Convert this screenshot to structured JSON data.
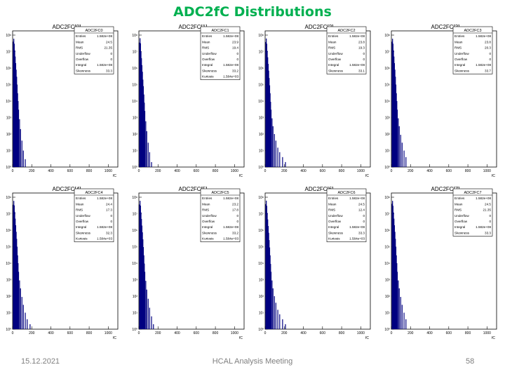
{
  "slide": {
    "title": "ADC2fC Distributions",
    "footer_date": "15.12.2021",
    "footer_center": "HCAL Analysis Meeting",
    "page_number": "58"
  },
  "colors": {
    "title": "#00b050",
    "bars": "#000080",
    "footer": "#7f7f7f"
  },
  "chart_data": [
    {
      "type": "bar",
      "title": "ADC2FC[0]",
      "stats_title": "ADC2FC0",
      "log_y": true,
      "xlim": [
        0,
        1100
      ],
      "x_ticks": [
        "0",
        "200",
        "400",
        "600",
        "800",
        "1000"
      ],
      "x_unit": "fC",
      "y_ticks": [
        "10⁰",
        "10¹",
        "10²",
        "10³",
        "10⁴",
        "10⁵",
        "10⁶",
        "10⁷",
        "10⁸"
      ],
      "stats": [
        [
          "Entries",
          "1.582e+08"
        ],
        [
          "Mean",
          "24.5"
        ],
        [
          "RMS",
          "21.35"
        ],
        [
          "Underflow",
          "0"
        ],
        [
          "Overflow",
          "0"
        ],
        [
          "Integral",
          "1.582e+08"
        ],
        [
          "Skewness",
          "33.3"
        ]
      ],
      "bins_x": [
        5,
        10,
        15,
        20,
        25,
        30,
        35,
        40,
        45,
        50,
        55,
        60,
        70,
        80,
        95,
        110,
        130
      ],
      "bins_y": [
        40000000.0,
        60000000.0,
        30000000.0,
        12000000.0,
        5000000.0,
        2000000.0,
        800000.0,
        300000.0,
        100000.0,
        30000.0,
        10000.0,
        3000,
        800,
        200,
        40,
        10,
        3
      ]
    },
    {
      "type": "bar",
      "title": "ADC2FC[1]",
      "stats_title": "ADC2FC1",
      "log_y": true,
      "xlim": [
        0,
        1100
      ],
      "x_ticks": [
        "0",
        "200",
        "400",
        "600",
        "800",
        "1000"
      ],
      "x_unit": "fC",
      "y_ticks": [
        "10⁰",
        "10¹",
        "10²",
        "10³",
        "10⁴",
        "10⁵",
        "10⁶",
        "10⁷",
        "10⁸"
      ],
      "stats": [
        [
          "Entries",
          "1.582e+08"
        ],
        [
          "Mean",
          "23.9"
        ],
        [
          "RMS",
          "19.4"
        ],
        [
          "Underflow",
          "0"
        ],
        [
          "Overflow",
          "0"
        ],
        [
          "Integral",
          "1.582e+08"
        ],
        [
          "Skewness",
          "33.2"
        ],
        [
          "Kurtosis",
          "1.584e+03"
        ]
      ],
      "bins_x": [
        5,
        10,
        15,
        20,
        25,
        30,
        35,
        40,
        45,
        50,
        55,
        60,
        70,
        80,
        95,
        110,
        130
      ],
      "bins_y": [
        35000000.0,
        65000000.0,
        32000000.0,
        10000000.0,
        4000000.0,
        1500000.0,
        600000.0,
        200000.0,
        80000.0,
        25000.0,
        8000,
        2500,
        600,
        150,
        30,
        8,
        2
      ]
    },
    {
      "type": "bar",
      "title": "ADC2FC[2]",
      "stats_title": "ADC2FC2",
      "log_y": true,
      "xlim": [
        0,
        1100
      ],
      "x_ticks": [
        "0",
        "200",
        "400",
        "600",
        "800",
        "1000"
      ],
      "x_unit": "fC",
      "y_ticks": [
        "10⁰",
        "10¹",
        "10²",
        "10³",
        "10⁴",
        "10⁵",
        "10⁶",
        "10⁷",
        "10⁸"
      ],
      "stats": [
        [
          "Entries",
          "1.582e+08"
        ],
        [
          "Mean",
          "23.8"
        ],
        [
          "RMS",
          "19.3"
        ],
        [
          "Underflow",
          "0"
        ],
        [
          "Overflow",
          "0"
        ],
        [
          "Integral",
          "1.582e+08"
        ],
        [
          "Skewness",
          "33.1"
        ]
      ],
      "bins_x": [
        5,
        10,
        15,
        20,
        25,
        30,
        35,
        40,
        45,
        50,
        55,
        60,
        70,
        80,
        95,
        110,
        130,
        150,
        180,
        210,
        250
      ],
      "bins_y": [
        38000000.0,
        62000000.0,
        30000000.0,
        11000000.0,
        4500000.0,
        1800000.0,
        700000.0,
        250000.0,
        90000.0,
        30000.0,
        9000,
        3000,
        900,
        300,
        100,
        40,
        15,
        8,
        4,
        2,
        1
      ]
    },
    {
      "type": "bar",
      "title": "ADC2FC[3]",
      "stats_title": "ADC2FC3",
      "log_y": true,
      "xlim": [
        0,
        1100
      ],
      "x_ticks": [
        "0",
        "200",
        "400",
        "600",
        "800",
        "1000"
      ],
      "x_unit": "fC",
      "y_ticks": [
        "10⁰",
        "10¹",
        "10²",
        "10³",
        "10⁴",
        "10⁵",
        "10⁶",
        "10⁷",
        "10⁸"
      ],
      "stats": [
        [
          "Entries",
          "1.582e+08"
        ],
        [
          "Mean",
          "23.8"
        ],
        [
          "RMS",
          "20.3"
        ],
        [
          "Underflow",
          "0"
        ],
        [
          "Overflow",
          "0"
        ],
        [
          "Integral",
          "1.582e+08"
        ],
        [
          "Skewness",
          "33.7"
        ]
      ],
      "bins_x": [
        5,
        10,
        15,
        20,
        25,
        30,
        35,
        40,
        45,
        50,
        55,
        60,
        70,
        80,
        95,
        110,
        130,
        150,
        180
      ],
      "bins_y": [
        40000000.0,
        60000000.0,
        30000000.0,
        12000000.0,
        5000000.0,
        2000000.0,
        800000.0,
        300000.0,
        100000.0,
        30000.0,
        10000.0,
        3000,
        900,
        300,
        90,
        30,
        10,
        4,
        1
      ]
    },
    {
      "type": "bar",
      "title": "ADC2FC[4]",
      "stats_title": "ADC2FC4",
      "log_y": true,
      "xlim": [
        0,
        1100
      ],
      "x_ticks": [
        "0",
        "200",
        "400",
        "600",
        "800",
        "1000"
      ],
      "x_unit": "fC",
      "y_ticks": [
        "10⁰",
        "10¹",
        "10²",
        "10³",
        "10⁴",
        "10⁵",
        "10⁶",
        "10⁷",
        "10⁸"
      ],
      "stats": [
        [
          "Entries",
          "1.582e+08"
        ],
        [
          "Mean",
          "24.4"
        ],
        [
          "RMS",
          "17.3"
        ],
        [
          "Underflow",
          "0"
        ],
        [
          "Overflow",
          "0"
        ],
        [
          "Integral",
          "1.582e+08"
        ],
        [
          "Skewness",
          "32.3"
        ],
        [
          "Kurtosis",
          "1.584e+03"
        ]
      ],
      "bins_x": [
        5,
        10,
        15,
        20,
        25,
        30,
        35,
        40,
        45,
        50,
        55,
        60,
        70,
        80,
        95,
        110,
        130,
        150,
        180,
        210
      ],
      "bins_y": [
        35000000.0,
        60000000.0,
        32000000.0,
        13000000.0,
        5000000.0,
        2000000.0,
        800000.0,
        300000.0,
        100000.0,
        30000.0,
        10000.0,
        3000,
        900,
        300,
        90,
        30,
        10,
        4,
        2,
        1
      ]
    },
    {
      "type": "bar",
      "title": "ADC2FC[5]",
      "stats_title": "ADC2FC5",
      "log_y": true,
      "xlim": [
        0,
        1100
      ],
      "x_ticks": [
        "0",
        "200",
        "400",
        "600",
        "800",
        "1000"
      ],
      "x_unit": "fC",
      "y_ticks": [
        "10⁰",
        "10¹",
        "10²",
        "10³",
        "10⁴",
        "10⁵",
        "10⁶",
        "10⁷",
        "10⁸"
      ],
      "stats": [
        [
          "Entries",
          "1.582e+08"
        ],
        [
          "Mean",
          "23.2"
        ],
        [
          "RMS",
          "17.8"
        ],
        [
          "Underflow",
          "0"
        ],
        [
          "Overflow",
          "0"
        ],
        [
          "Integral",
          "1.582e+08"
        ],
        [
          "Skewness",
          "33.2"
        ],
        [
          "Kurtosis",
          "1.584e+03"
        ]
      ],
      "bins_x": [
        5,
        10,
        15,
        20,
        25,
        30,
        35,
        40,
        45,
        50,
        55,
        60,
        70,
        80,
        95,
        110,
        130,
        150
      ],
      "bins_y": [
        36000000.0,
        61000000.0,
        31000000.0,
        12000000.0,
        4800000.0,
        1900000.0,
        750000.0,
        280000.0,
        95000.0,
        30000.0,
        9500,
        3000,
        850,
        250,
        70,
        20,
        6,
        2
      ]
    },
    {
      "type": "bar",
      "title": "ADC2FC[6]",
      "stats_title": "ADC2FC6",
      "log_y": true,
      "xlim": [
        0,
        1100
      ],
      "x_ticks": [
        "0",
        "200",
        "400",
        "600",
        "800",
        "1000"
      ],
      "x_unit": "fC",
      "y_ticks": [
        "10⁰",
        "10¹",
        "10²",
        "10³",
        "10⁴",
        "10⁵",
        "10⁶",
        "10⁷",
        "10⁸"
      ],
      "stats": [
        [
          "Entries",
          "1.582e+08"
        ],
        [
          "Mean",
          "24.5"
        ],
        [
          "RMS",
          "12.4"
        ],
        [
          "Underflow",
          "0"
        ],
        [
          "Overflow",
          "0"
        ],
        [
          "Integral",
          "1.582e+08"
        ],
        [
          "Skewness",
          "33.3"
        ],
        [
          "Kurtosis",
          "1.584e+03"
        ]
      ],
      "bins_x": [
        5,
        10,
        15,
        20,
        25,
        30,
        35,
        40,
        45,
        50,
        55,
        60,
        70,
        80,
        95,
        110,
        130,
        150,
        180,
        210
      ],
      "bins_y": [
        38000000.0,
        62000000.0,
        30000000.0,
        11000000.0,
        4500000.0,
        1800000.0,
        700000.0,
        250000.0,
        90000.0,
        30000.0,
        9000,
        3000,
        900,
        300,
        100,
        40,
        15,
        8,
        4,
        2
      ]
    },
    {
      "type": "bar",
      "title": "ADC2FC[7]",
      "stats_title": "ADC2FC7",
      "log_y": true,
      "xlim": [
        0,
        1100
      ],
      "x_ticks": [
        "0",
        "200",
        "400",
        "600",
        "800",
        "1000"
      ],
      "x_unit": "fC",
      "y_ticks": [
        "10⁰",
        "10¹",
        "10²",
        "10³",
        "10⁴",
        "10⁵",
        "10⁶",
        "10⁷",
        "10⁸"
      ],
      "stats": [
        [
          "Entries",
          "1.582e+08"
        ],
        [
          "Mean",
          "24.5"
        ],
        [
          "RMS",
          "21.35"
        ],
        [
          "Underflow",
          "0"
        ],
        [
          "Overflow",
          "0"
        ],
        [
          "Integral",
          "1.582e+08"
        ],
        [
          "Skewness",
          "33.3"
        ]
      ],
      "bins_x": [
        5,
        10,
        15,
        20,
        25,
        30,
        35,
        40,
        45,
        50,
        55,
        60,
        70,
        80,
        95,
        110,
        130,
        150,
        180
      ],
      "bins_y": [
        40000000.0,
        60000000.0,
        30000000.0,
        12000000.0,
        5000000.0,
        2000000.0,
        800000.0,
        300000.0,
        100000.0,
        30000.0,
        10000.0,
        3000,
        900,
        300,
        90,
        30,
        10,
        4,
        1
      ]
    }
  ]
}
